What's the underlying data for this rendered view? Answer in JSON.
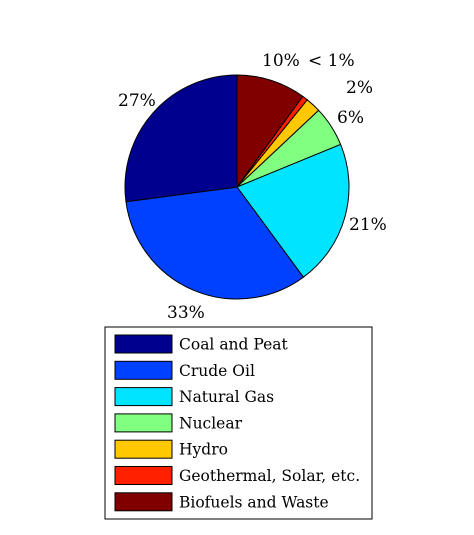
{
  "chart_data": {
    "type": "pie",
    "start_angle_deg": 90,
    "direction": "clockwise",
    "slices": [
      {
        "name": "Biofuels and Waste",
        "value": 10,
        "label": "10%",
        "color": "#800000"
      },
      {
        "name": "Geothermal, Solar, etc.",
        "value": 0.8,
        "label": "< 1%",
        "color": "#ff2000"
      },
      {
        "name": "Hydro",
        "value": 2.2,
        "label": "2%",
        "color": "#ffc800"
      },
      {
        "name": "Nuclear",
        "value": 5.8,
        "label": "6%",
        "color": "#80ff80"
      },
      {
        "name": "Natural Gas",
        "value": 21.1,
        "label": "21%",
        "color": "#00e4ff"
      },
      {
        "name": "Crude Oil",
        "value": 33,
        "label": "33%",
        "color": "#0040ff"
      },
      {
        "name": "Coal and Peat",
        "value": 27.1,
        "label": "27%",
        "color": "#00008f"
      }
    ],
    "legend": {
      "placement": "bottom",
      "entries": [
        {
          "name": "Coal and Peat",
          "color": "#00008f"
        },
        {
          "name": "Crude Oil",
          "color": "#0040ff"
        },
        {
          "name": "Natural Gas",
          "color": "#00e4ff"
        },
        {
          "name": "Nuclear",
          "color": "#80ff80"
        },
        {
          "name": "Hydro",
          "color": "#ffc800"
        },
        {
          "name": "Geothermal, Solar, etc.",
          "color": "#ff2000"
        },
        {
          "name": "Biofuels and Waste",
          "color": "#800000"
        }
      ]
    }
  }
}
